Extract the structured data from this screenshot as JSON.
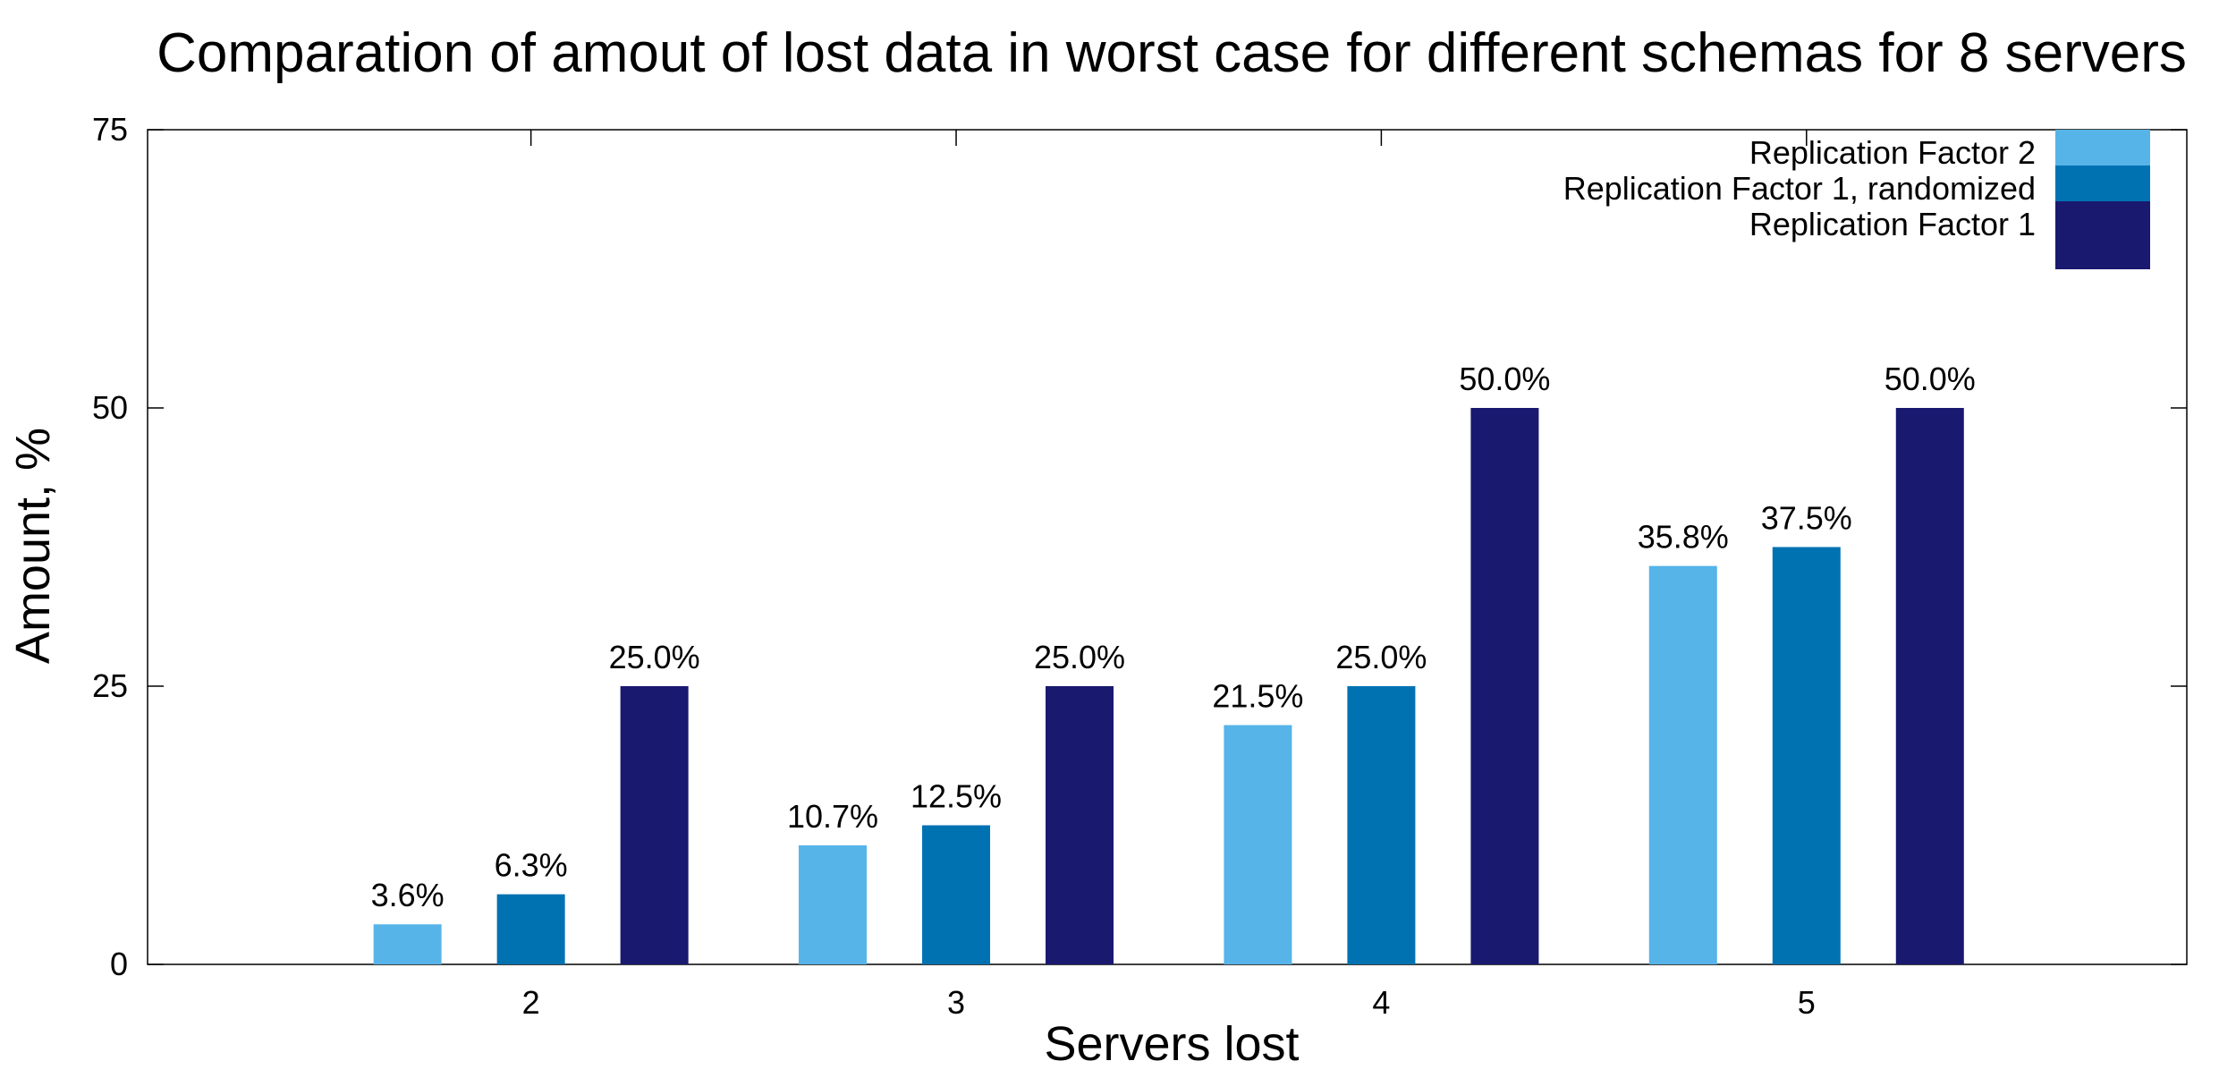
{
  "chart_data": {
    "type": "bar",
    "title": "Comparation of amout of lost data in worst case for different schemas for 8 servers",
    "xlabel": "Servers lost",
    "ylabel": "Amount, %",
    "categories": [
      "2",
      "3",
      "4",
      "5"
    ],
    "ylim": [
      0,
      75
    ],
    "yticks": [
      0,
      25,
      50,
      75
    ],
    "grid": false,
    "legend_position": "top-right",
    "series": [
      {
        "name": "Replication Factor 2",
        "color": "#56b4e9",
        "values": [
          3.6,
          10.7,
          21.5,
          35.8
        ],
        "labels": [
          "3.6%",
          "10.7%",
          "21.5%",
          "35.8%"
        ]
      },
      {
        "name": "Replication Factor 1, randomized",
        "color": "#0072b2",
        "values": [
          6.3,
          12.5,
          25.0,
          37.5
        ],
        "labels": [
          "6.3%",
          "12.5%",
          "25.0%",
          "37.5%"
        ]
      },
      {
        "name": "Replication Factor 1",
        "color": "#191970",
        "values": [
          25.0,
          25.0,
          50.0,
          50.0
        ],
        "labels": [
          "25.0%",
          "25.0%",
          "50.0%",
          "50.0%"
        ]
      }
    ]
  }
}
